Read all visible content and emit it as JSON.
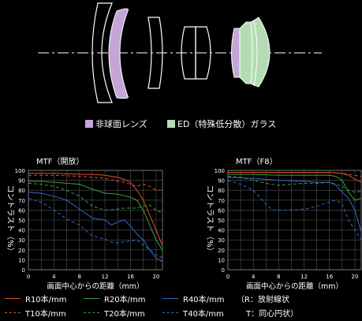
{
  "legend": {
    "aspherical_label": "非球面レンズ",
    "aspherical_color": "#c4a6d6",
    "ed_label": "ED（特殊低分散）ガラス",
    "ed_color": "#b4dcb4"
  },
  "chart_data": [
    {
      "type": "line",
      "title": "MTF（開放）",
      "xlabel": "画面中心からの距離（mm）",
      "ylabel": "コントラスト（%）",
      "xlim": [
        0,
        21
      ],
      "ylim": [
        0,
        100
      ],
      "xticks": [
        0,
        4,
        8,
        12,
        16,
        20
      ],
      "yticks": [
        0,
        10,
        20,
        30,
        40,
        50,
        60,
        70,
        80,
        90,
        100
      ],
      "grid": true,
      "series": [
        {
          "name": "R10本/mm",
          "color": "#e0502a",
          "dash": false,
          "x": [
            0,
            4,
            8,
            10,
            12,
            14,
            15,
            16,
            17,
            18,
            19,
            20,
            21
          ],
          "y": [
            97,
            97,
            96,
            96,
            95,
            93,
            91,
            88,
            80,
            70,
            55,
            40,
            24
          ]
        },
        {
          "name": "T10本/mm",
          "color": "#e0502a",
          "dash": true,
          "x": [
            0,
            4,
            8,
            10,
            12,
            14,
            15,
            16,
            17,
            18,
            19,
            20,
            21
          ],
          "y": [
            95,
            95,
            94,
            93,
            92,
            89,
            88,
            86,
            84,
            86,
            84,
            80,
            80
          ]
        },
        {
          "name": "R20本/mm",
          "color": "#3aa03a",
          "dash": false,
          "x": [
            0,
            2,
            4,
            6,
            8,
            10,
            12,
            14,
            16,
            17,
            18,
            19,
            20,
            21
          ],
          "y": [
            89,
            89,
            88,
            87,
            86,
            81,
            77,
            76,
            73,
            70,
            60,
            45,
            30,
            20
          ]
        },
        {
          "name": "T20本/mm",
          "color": "#3aa03a",
          "dash": true,
          "x": [
            0,
            2,
            4,
            6,
            8,
            10,
            12,
            14,
            15,
            16,
            17,
            18,
            19,
            20,
            21
          ],
          "y": [
            87,
            86,
            84,
            80,
            74,
            64,
            60,
            61,
            62,
            62,
            62,
            64,
            65,
            60,
            57
          ]
        },
        {
          "name": "R40本/mm",
          "color": "#2e6ac8",
          "dash": false,
          "x": [
            0,
            2,
            4,
            6,
            8,
            10,
            12,
            13,
            14,
            15,
            16,
            17,
            18,
            19,
            20,
            21
          ],
          "y": [
            78,
            77,
            74,
            70,
            61,
            52,
            50,
            45,
            48,
            50,
            44,
            36,
            30,
            20,
            12,
            8
          ]
        },
        {
          "name": "T40本/mm",
          "color": "#2e6ac8",
          "dash": true,
          "x": [
            0,
            2,
            4,
            6,
            8,
            10,
            12,
            13,
            14,
            15,
            16,
            17,
            18,
            19,
            20,
            21
          ],
          "y": [
            72,
            68,
            60,
            51,
            45,
            34,
            31,
            28,
            27,
            28,
            29,
            30,
            25,
            20,
            15,
            12
          ]
        }
      ]
    },
    {
      "type": "line",
      "title": "MTF（F8）",
      "xlabel": "画面中心からの距離（mm）",
      "ylabel": "コントラスト（%）",
      "xlim": [
        0,
        21
      ],
      "ylim": [
        0,
        100
      ],
      "xticks": [
        0,
        4,
        8,
        12,
        16,
        20
      ],
      "yticks": [
        0,
        10,
        20,
        30,
        40,
        50,
        60,
        70,
        80,
        90,
        100
      ],
      "grid": true,
      "series": [
        {
          "name": "R10本/mm",
          "color": "#e0502a",
          "dash": false,
          "x": [
            0,
            4,
            8,
            12,
            16,
            18,
            19,
            20,
            21
          ],
          "y": [
            98,
            98,
            98,
            98,
            98,
            97,
            95,
            91,
            88
          ]
        },
        {
          "name": "T10本/mm",
          "color": "#e0502a",
          "dash": true,
          "x": [
            0,
            4,
            8,
            12,
            16,
            18,
            19,
            20,
            21
          ],
          "y": [
            98,
            98,
            98,
            98,
            98,
            97,
            96,
            95,
            94
          ]
        },
        {
          "name": "R20本/mm",
          "color": "#3aa03a",
          "dash": false,
          "x": [
            0,
            4,
            8,
            12,
            16,
            17,
            18,
            19,
            20,
            21
          ],
          "y": [
            96,
            96,
            95,
            95,
            95,
            94,
            90,
            78,
            70,
            72
          ]
        },
        {
          "name": "T20本/mm",
          "color": "#3aa03a",
          "dash": true,
          "x": [
            0,
            2,
            4,
            6,
            8,
            10,
            12,
            14,
            16,
            17,
            18,
            19,
            20,
            21
          ],
          "y": [
            94,
            93,
            90,
            87,
            85,
            86,
            87,
            87,
            88,
            86,
            84,
            80,
            78,
            79
          ]
        },
        {
          "name": "R40本/mm",
          "color": "#2e6ac8",
          "dash": false,
          "x": [
            0,
            4,
            8,
            12,
            14,
            16,
            17,
            18,
            19,
            20,
            21
          ],
          "y": [
            93,
            92,
            90,
            89,
            88,
            88,
            85,
            78,
            72,
            60,
            38
          ]
        },
        {
          "name": "T40本/mm",
          "color": "#2e6ac8",
          "dash": true,
          "x": [
            0,
            2,
            4,
            6,
            7,
            8,
            10,
            12,
            13,
            14,
            15,
            16,
            17,
            18,
            19,
            20,
            21
          ],
          "y": [
            90,
            86,
            80,
            66,
            60,
            60,
            60,
            61,
            62,
            64,
            66,
            68,
            70,
            66,
            50,
            40,
            30
          ]
        }
      ]
    }
  ],
  "bottom_legend": {
    "r10": "R10本/mm",
    "t10": "T10本/mm",
    "r20": "R20本/mm",
    "t20": "T20本/mm",
    "r40": "R40本/mm",
    "t40": "T40本/mm",
    "note_r": "（R：放射線状",
    "note_t": "T：同心円状）"
  }
}
